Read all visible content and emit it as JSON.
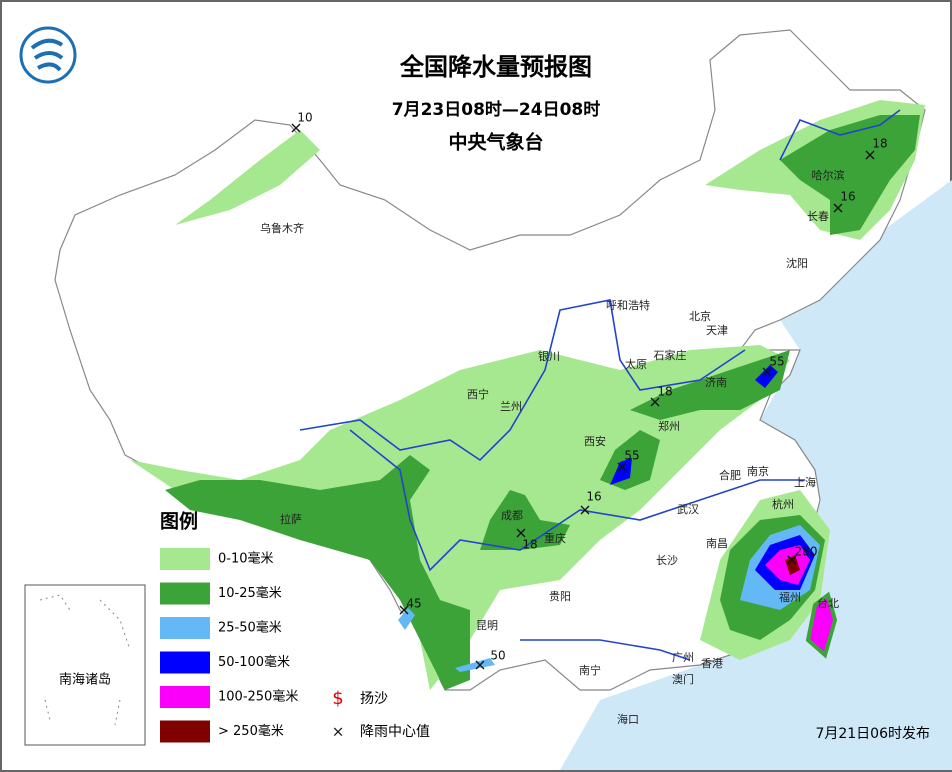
{
  "header": {
    "title": "全国降水量预报图",
    "period": "7月23日08时—24日08时",
    "issuer": "中央气象台"
  },
  "legend": {
    "title": "图例",
    "items": [
      {
        "label": "0-10毫米",
        "color": "#a6e88f"
      },
      {
        "label": "10-25毫米",
        "color": "#3ca339"
      },
      {
        "label": "25-50毫米",
        "color": "#63b8f5"
      },
      {
        "label": "50-100毫米",
        "color": "#0000ff"
      },
      {
        "label": "100-250毫米",
        "color": "#fa00fa"
      },
      {
        "label": "> 250毫米",
        "color": "#800000"
      }
    ],
    "symbols": [
      {
        "symbol": "$",
        "label": "扬沙"
      },
      {
        "symbol": "×",
        "label": "降雨中心值"
      }
    ]
  },
  "rain_centers": [
    10,
    18,
    16,
    55,
    18,
    55,
    16,
    18,
    45,
    50,
    280
  ],
  "cities": [
    "乌鲁木齐",
    "哈尔滨",
    "长春",
    "沈阳",
    "呼和浩特",
    "北京",
    "天津",
    "石家庄",
    "太原",
    "银川",
    "西宁",
    "兰州",
    "济南",
    "郑州",
    "西安",
    "合肥",
    "南京",
    "上海",
    "杭州",
    "拉萨",
    "成都",
    "重庆",
    "武汉",
    "南昌",
    "长沙",
    "福州",
    "台北",
    "贵阳",
    "昆明",
    "南宁",
    "广州",
    "香港",
    "澳门",
    "海口"
  ],
  "inset_label": "南海诸岛",
  "issued": "7月21日06时发布"
}
